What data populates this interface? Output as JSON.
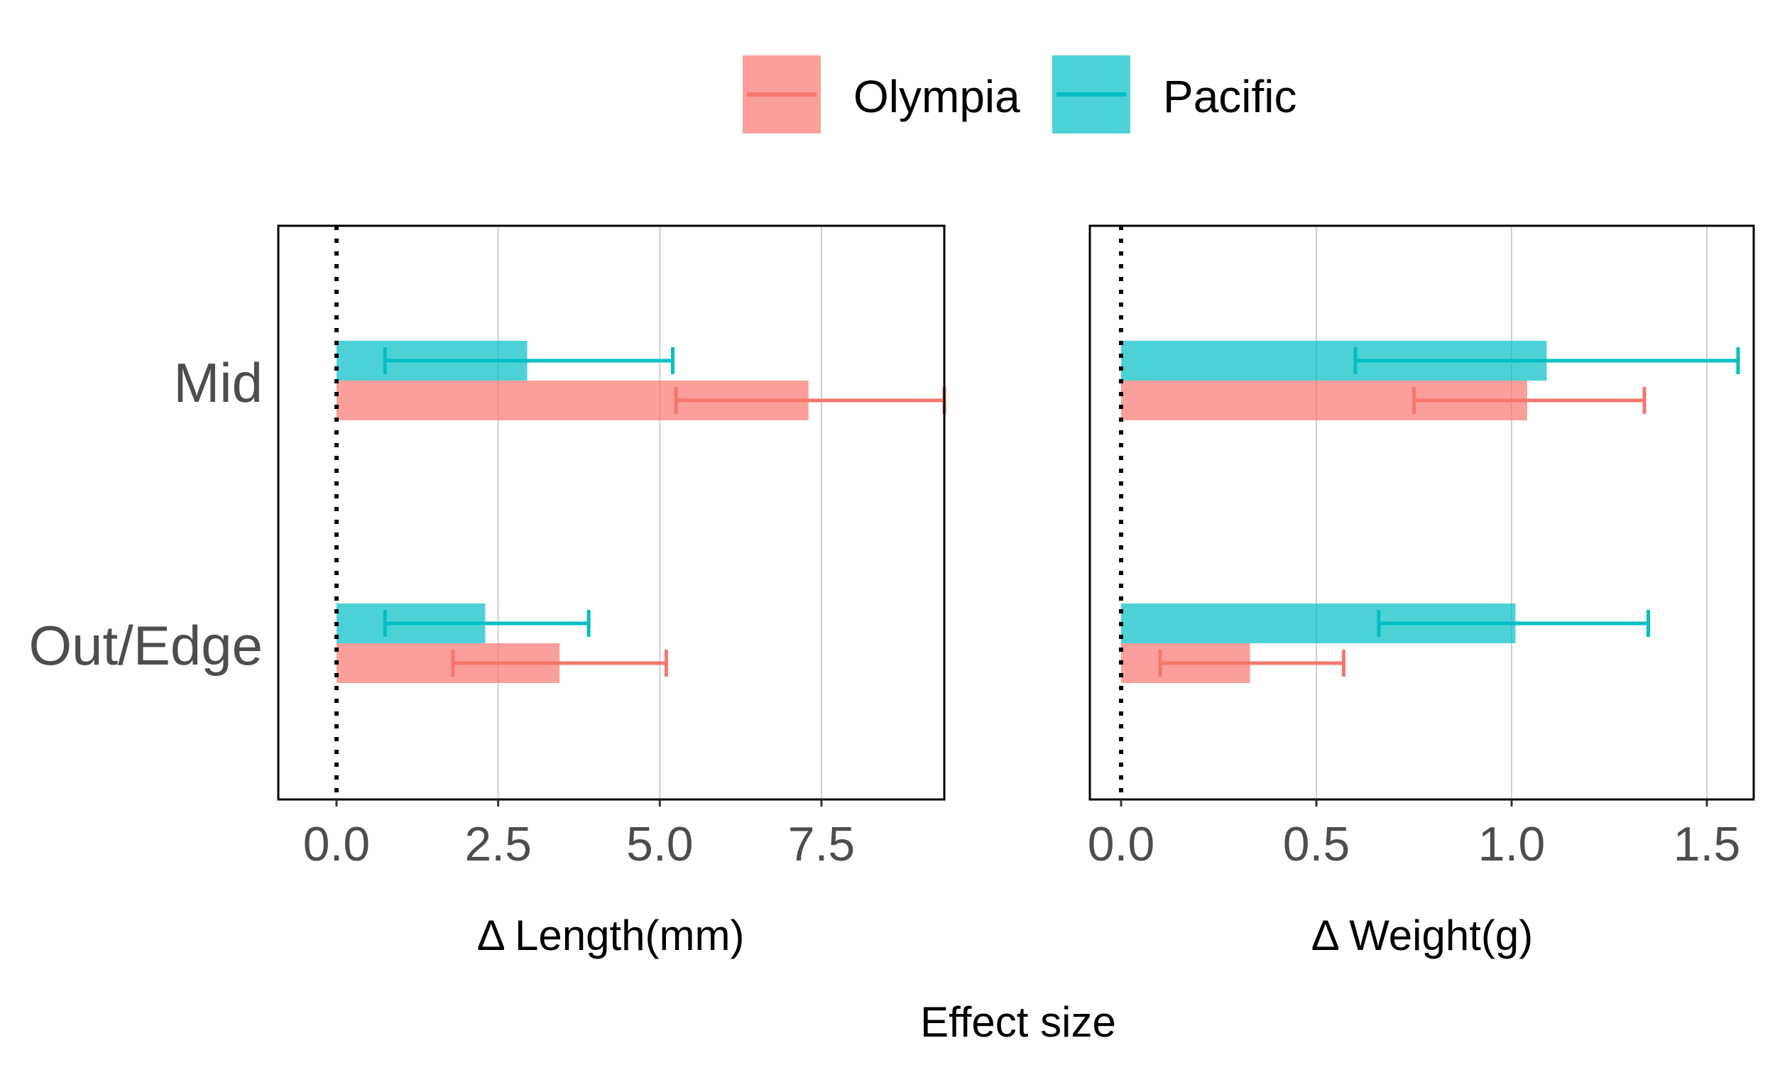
{
  "chart_data": {
    "type": "bar",
    "orientation": "horizontal",
    "categories": [
      "Mid",
      "Out/Edge"
    ],
    "legend": {
      "position": "top",
      "entries": [
        {
          "name": "Olympia",
          "color": "#F8766D"
        },
        {
          "name": "Pacific",
          "color": "#00BFC4"
        }
      ]
    },
    "xlabel_shared": "Effect size",
    "grid": true,
    "reference_line": 0,
    "panels": [
      {
        "xlabel": "Δ Length(mm)",
        "xlim": [
          -0.9,
          9.4
        ],
        "ticks": [
          "0.0",
          "2.5",
          "5.0",
          "7.5"
        ],
        "tick_values": [
          0,
          2.5,
          5,
          7.5
        ],
        "series": [
          {
            "name": "Olympia",
            "values": [
              7.3,
              3.45
            ],
            "ci_low": [
              5.25,
              1.8
            ],
            "ci_high": [
              9.4,
              5.1
            ]
          },
          {
            "name": "Pacific",
            "values": [
              2.95,
              2.3
            ],
            "ci_low": [
              0.75,
              0.75
            ],
            "ci_high": [
              5.2,
              3.9
            ]
          }
        ]
      },
      {
        "xlabel": "Δ Weight(g)",
        "xlim": [
          -0.08,
          1.62
        ],
        "ticks": [
          "0.0",
          "0.5",
          "1.0",
          "1.5"
        ],
        "tick_values": [
          0,
          0.5,
          1.0,
          1.5
        ],
        "series": [
          {
            "name": "Olympia",
            "values": [
              1.04,
              0.33
            ],
            "ci_low": [
              0.75,
              0.1
            ],
            "ci_high": [
              1.34,
              0.57
            ]
          },
          {
            "name": "Pacific",
            "values": [
              1.09,
              1.01
            ],
            "ci_low": [
              0.6,
              0.66
            ],
            "ci_high": [
              1.58,
              1.35
            ]
          }
        ]
      }
    ]
  }
}
